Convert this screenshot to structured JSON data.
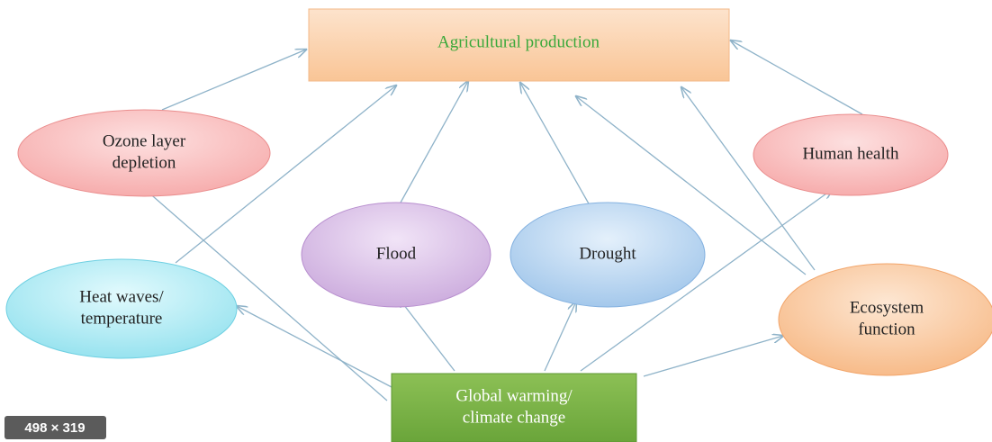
{
  "nodes": [
    {
      "label": [
        "Agricultural production"
      ]
    },
    {
      "label": [
        "Ozone layer",
        "depletion"
      ]
    },
    {
      "label": [
        "Human health"
      ]
    },
    {
      "label": [
        "Flood"
      ]
    },
    {
      "label": [
        "Drought"
      ]
    },
    {
      "label": [
        "Heat waves/",
        "temperature"
      ]
    },
    {
      "label": [
        "Ecosystem",
        "function"
      ]
    },
    {
      "label": [
        "Global warming/",
        "climate change"
      ]
    }
  ],
  "badge": "498 × 319"
}
